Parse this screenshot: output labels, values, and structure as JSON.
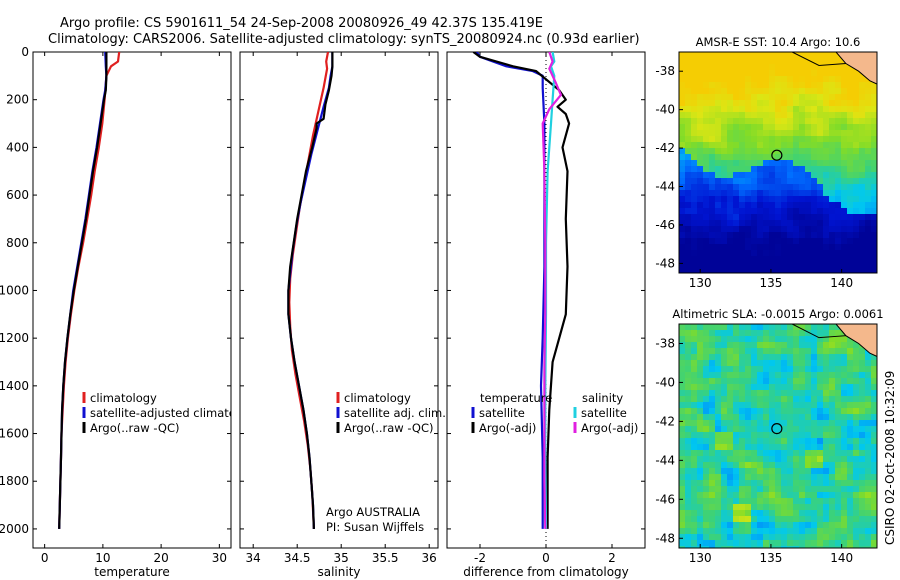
{
  "header": {
    "line1": "Argo profile: CS 5901611_54 24-Sep-2008 20080926_49 42.37S 135.419E",
    "line2": "Climatology: CARS2006. Satellite-adjusted climatology: synTS_20080924.nc (0.93d earlier)"
  },
  "colors": {
    "climatology": "#e02020",
    "satellite": "#1010d0",
    "argo": "#000000",
    "sat_sal": "#20d0e0",
    "argo_sal": "#e020e0",
    "land": "#f4b88c"
  },
  "chart_data": [
    {
      "type": "line",
      "id": "temperature",
      "xlabel": "temperature",
      "xlim": [
        -2,
        32
      ],
      "xticks": [
        0,
        10,
        20,
        30
      ],
      "ylim": [
        0,
        2080
      ],
      "yticks": [
        0,
        200,
        400,
        600,
        800,
        1000,
        1200,
        1400,
        1600,
        1800,
        2000
      ],
      "y_reversed": true,
      "legend": [
        "climatology",
        "satellite-adjusted climatology",
        "Argo(..raw -QC)"
      ],
      "series": [
        {
          "name": "climatology",
          "color": "#e02020",
          "points": [
            [
              12.8,
              0
            ],
            [
              12.6,
              40
            ],
            [
              11.4,
              60
            ],
            [
              10.6,
              100
            ],
            [
              10.3,
              200
            ],
            [
              9.9,
              300
            ],
            [
              9.3,
              400
            ],
            [
              8.6,
              500
            ],
            [
              8.0,
              600
            ],
            [
              7.3,
              700
            ],
            [
              6.6,
              800
            ],
            [
              5.8,
              900
            ],
            [
              5.1,
              1000
            ],
            [
              4.5,
              1100
            ],
            [
              4.0,
              1200
            ],
            [
              3.6,
              1300
            ],
            [
              3.3,
              1400
            ],
            [
              3.1,
              1500
            ],
            [
              2.9,
              1600
            ],
            [
              2.8,
              1700
            ],
            [
              2.7,
              1800
            ],
            [
              2.6,
              1900
            ],
            [
              2.5,
              2000
            ]
          ]
        },
        {
          "name": "satellite-adjusted climatology",
          "color": "#1010d0",
          "points": [
            [
              10.4,
              0
            ],
            [
              10.5,
              60
            ],
            [
              10.6,
              100
            ],
            [
              10.4,
              160
            ],
            [
              10.1,
              200
            ],
            [
              9.5,
              300
            ],
            [
              8.9,
              400
            ],
            [
              8.2,
              500
            ],
            [
              7.6,
              600
            ],
            [
              7.0,
              700
            ],
            [
              6.3,
              800
            ],
            [
              5.6,
              900
            ],
            [
              4.9,
              1000
            ],
            [
              4.4,
              1100
            ],
            [
              3.9,
              1200
            ],
            [
              3.5,
              1300
            ],
            [
              3.2,
              1400
            ],
            [
              3.0,
              1500
            ],
            [
              2.9,
              1600
            ],
            [
              2.8,
              1700
            ],
            [
              2.7,
              1800
            ],
            [
              2.6,
              1900
            ],
            [
              2.5,
              2000
            ]
          ]
        },
        {
          "name": "Argo(..raw -QC)",
          "color": "#000000",
          "points": [
            [
              10.6,
              0
            ],
            [
              10.6,
              60
            ],
            [
              10.6,
              100
            ],
            [
              10.5,
              160
            ],
            [
              10.2,
              200
            ],
            [
              9.6,
              300
            ],
            [
              9.0,
              400
            ],
            [
              8.3,
              500
            ],
            [
              7.7,
              600
            ],
            [
              7.1,
              700
            ],
            [
              6.4,
              800
            ],
            [
              5.7,
              900
            ],
            [
              5.0,
              1000
            ],
            [
              4.4,
              1100
            ],
            [
              3.9,
              1200
            ],
            [
              3.5,
              1300
            ],
            [
              3.2,
              1400
            ],
            [
              3.0,
              1500
            ],
            [
              2.9,
              1600
            ],
            [
              2.8,
              1700
            ],
            [
              2.7,
              1800
            ],
            [
              2.6,
              1900
            ],
            [
              2.5,
              2000
            ]
          ]
        }
      ]
    },
    {
      "type": "line",
      "id": "salinity",
      "xlabel": "salinity",
      "xlim": [
        33.85,
        36.1
      ],
      "xticks": [
        34,
        34.5,
        35,
        35.5,
        36
      ],
      "ylim": [
        0,
        2080
      ],
      "y_reversed": true,
      "legend": [
        "climatology",
        "satellite adj. clim.",
        "Argo(..raw -QC)"
      ],
      "annotation": [
        "Argo AUSTRALIA",
        "PI: Susan Wijffels"
      ],
      "series": [
        {
          "name": "climatology",
          "color": "#e02020",
          "points": [
            [
              34.85,
              0
            ],
            [
              34.83,
              40
            ],
            [
              34.84,
              70
            ],
            [
              34.8,
              150
            ],
            [
              34.74,
              250
            ],
            [
              34.68,
              350
            ],
            [
              34.63,
              450
            ],
            [
              34.58,
              550
            ],
            [
              34.53,
              650
            ],
            [
              34.49,
              750
            ],
            [
              34.45,
              850
            ],
            [
              34.42,
              950
            ],
            [
              34.41,
              1050
            ],
            [
              34.42,
              1150
            ],
            [
              34.44,
              1250
            ],
            [
              34.48,
              1350
            ],
            [
              34.53,
              1450
            ],
            [
              34.58,
              1550
            ],
            [
              34.62,
              1650
            ],
            [
              34.65,
              1750
            ],
            [
              34.67,
              1850
            ],
            [
              34.69,
              2000
            ]
          ]
        },
        {
          "name": "satellite adj. clim.",
          "color": "#1010d0",
          "points": [
            [
              34.9,
              0
            ],
            [
              34.9,
              60
            ],
            [
              34.88,
              100
            ],
            [
              34.86,
              150
            ],
            [
              34.8,
              230
            ],
            [
              34.73,
              330
            ],
            [
              34.66,
              430
            ],
            [
              34.6,
              530
            ],
            [
              34.54,
              630
            ],
            [
              34.49,
              730
            ],
            [
              34.45,
              830
            ],
            [
              34.42,
              930
            ],
            [
              34.4,
              1000
            ],
            [
              34.4,
              1100
            ],
            [
              34.43,
              1200
            ],
            [
              34.47,
              1300
            ],
            [
              34.52,
              1400
            ],
            [
              34.57,
              1500
            ],
            [
              34.61,
              1600
            ],
            [
              34.64,
              1700
            ],
            [
              34.66,
              1800
            ],
            [
              34.68,
              1900
            ],
            [
              34.69,
              2000
            ]
          ]
        },
        {
          "name": "Argo(..raw -QC)",
          "color": "#000000",
          "points": [
            [
              34.9,
              0
            ],
            [
              34.9,
              60
            ],
            [
              34.89,
              100
            ],
            [
              34.86,
              160
            ],
            [
              34.82,
              220
            ],
            [
              34.8,
              280
            ],
            [
              34.72,
              300
            ],
            [
              34.72,
              320
            ],
            [
              34.67,
              400
            ],
            [
              34.6,
              500
            ],
            [
              34.55,
              600
            ],
            [
              34.5,
              700
            ],
            [
              34.46,
              800
            ],
            [
              34.42,
              900
            ],
            [
              34.4,
              1000
            ],
            [
              34.4,
              1100
            ],
            [
              34.43,
              1200
            ],
            [
              34.47,
              1300
            ],
            [
              34.52,
              1400
            ],
            [
              34.57,
              1500
            ],
            [
              34.61,
              1600
            ],
            [
              34.64,
              1700
            ],
            [
              34.66,
              1800
            ],
            [
              34.68,
              1900
            ],
            [
              34.69,
              2000
            ]
          ]
        }
      ]
    },
    {
      "type": "line",
      "id": "difference",
      "xlabel": "difference from climatology",
      "xlim": [
        -3,
        3
      ],
      "xticks": [
        -2,
        0,
        2
      ],
      "ylim": [
        0,
        2080
      ],
      "y_reversed": true,
      "legend_titles": [
        "temperature",
        "salinity"
      ],
      "legend": [
        "satellite",
        "Argo(-adj)",
        "satellite",
        "Argo(-adj)"
      ],
      "series": [
        {
          "name": "temperature satellite",
          "color": "#1010d0",
          "points": [
            [
              -2.1,
              0
            ],
            [
              -2.0,
              20
            ],
            [
              -1.2,
              60
            ],
            [
              -0.4,
              80
            ],
            [
              -0.1,
              100
            ],
            [
              -0.1,
              150
            ],
            [
              -0.05,
              300
            ],
            [
              -0.05,
              600
            ],
            [
              -0.05,
              900
            ],
            [
              -0.1,
              1200
            ],
            [
              -0.15,
              1400
            ],
            [
              -0.1,
              1700
            ],
            [
              -0.1,
              2000
            ]
          ]
        },
        {
          "name": "temperature Argo(-adj)",
          "color": "#000000",
          "points": [
            [
              -2.2,
              0
            ],
            [
              -2.0,
              20
            ],
            [
              -1.0,
              60
            ],
            [
              -0.3,
              80
            ],
            [
              0.4,
              160
            ],
            [
              0.6,
              200
            ],
            [
              0.35,
              230
            ],
            [
              0.6,
              260
            ],
            [
              0.7,
              300
            ],
            [
              0.5,
              400
            ],
            [
              0.65,
              500
            ],
            [
              0.6,
              700
            ],
            [
              0.65,
              900
            ],
            [
              0.6,
              1100
            ],
            [
              0.4,
              1200
            ],
            [
              0.2,
              1300
            ],
            [
              0.1,
              1500
            ],
            [
              0.05,
              1700
            ],
            [
              0.05,
              1900
            ],
            [
              0.05,
              2000
            ]
          ]
        },
        {
          "name": "salinity satellite",
          "color": "#20d0e0",
          "points": [
            [
              0.2,
              0
            ],
            [
              0.25,
              40
            ],
            [
              0.15,
              60
            ],
            [
              0.25,
              100
            ],
            [
              0.2,
              200
            ],
            [
              0.15,
              300
            ],
            [
              0.05,
              500
            ],
            [
              0.0,
              800
            ],
            [
              0.0,
              1100
            ],
            [
              -0.02,
              1400
            ],
            [
              -0.02,
              1700
            ],
            [
              0.0,
              2000
            ]
          ]
        },
        {
          "name": "salinity Argo(-adj)",
          "color": "#e020e0",
          "points": [
            [
              0.1,
              0
            ],
            [
              0.2,
              40
            ],
            [
              0.1,
              70
            ],
            [
              0.3,
              130
            ],
            [
              0.45,
              180
            ],
            [
              0.1,
              240
            ],
            [
              -0.1,
              300
            ],
            [
              -0.05,
              500
            ],
            [
              -0.02,
              800
            ],
            [
              -0.02,
              1100
            ],
            [
              -0.05,
              1300
            ],
            [
              -0.05,
              1550
            ],
            [
              -0.05,
              1800
            ],
            [
              -0.02,
              2000
            ]
          ]
        }
      ]
    },
    {
      "type": "heatmap",
      "id": "sst-map",
      "title": "AMSR-E SST: 10.4 Argo: 10.6",
      "xlim": [
        128.5,
        142.5
      ],
      "ylim": [
        -48.5,
        -37
      ],
      "xticks": [
        130,
        135,
        140
      ],
      "yticks": [
        -38,
        -40,
        -42,
        -44,
        -46,
        -48
      ],
      "argo_position": [
        135.419,
        -42.37
      ]
    },
    {
      "type": "heatmap",
      "id": "sla-map",
      "title": "Altimetric SLA: -0.0015 Argo: 0.0061",
      "xlim": [
        128.5,
        142.5
      ],
      "ylim": [
        -48.5,
        -37
      ],
      "xticks": [
        130,
        135,
        140
      ],
      "yticks": [
        -38,
        -40,
        -42,
        -44,
        -46,
        -48
      ],
      "argo_position": [
        135.419,
        -42.37
      ]
    }
  ],
  "footer": {
    "stamp": "CSIRO 02-Oct-2008 10:32:09"
  }
}
